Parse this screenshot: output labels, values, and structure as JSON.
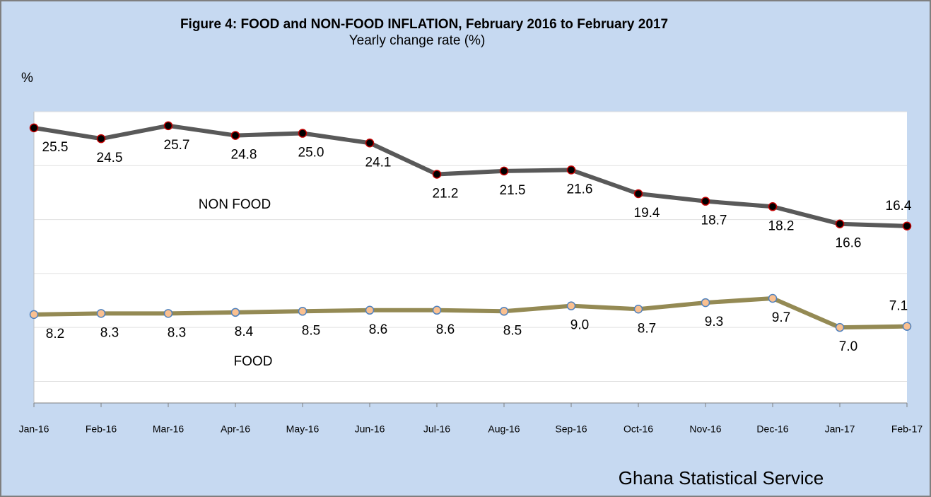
{
  "chart_data": {
    "type": "line",
    "title": "Figure 4: FOOD and NON-FOOD INFLATION,  February  2016  to  February 2017",
    "subtitle": "Yearly change rate (%)",
    "y_axis_label": "%",
    "source": "Ghana Statistical Service",
    "categories": [
      "Jan-16",
      "Feb-16",
      "Mar-16",
      "Apr-16",
      "May-16",
      "Jun-16",
      "Jul-16",
      "Aug-16",
      "Sep-16",
      "Oct-16",
      "Nov-16",
      "Dec-16",
      "Jan-17",
      "Feb-17"
    ],
    "series": [
      {
        "name": "NON FOOD",
        "color": "#595959",
        "marker_fill": "#000000",
        "marker_edge": "#c00000",
        "values": [
          25.5,
          24.5,
          25.7,
          24.8,
          25.0,
          24.1,
          21.2,
          21.5,
          21.6,
          19.4,
          18.7,
          18.2,
          16.6,
          16.4
        ],
        "value_labels": [
          "25.5",
          "24.5",
          "25.7",
          "24.8",
          "25.0",
          "24.1",
          "21.2",
          "21.5",
          "21.6",
          "19.4",
          "18.7",
          "18.2",
          "16.6",
          "16.4"
        ]
      },
      {
        "name": "FOOD",
        "color": "#948a54",
        "marker_fill": "#fac090",
        "marker_edge": "#4f81bd",
        "values": [
          8.2,
          8.3,
          8.3,
          8.4,
          8.5,
          8.6,
          8.6,
          8.5,
          9.0,
          8.7,
          9.3,
          9.7,
          7.0,
          7.1
        ],
        "value_labels": [
          "8.2",
          "8.3",
          "8.3",
          "8.4",
          "8.5",
          "8.6",
          "8.6",
          "8.5",
          "9.0",
          "8.7",
          "9.3",
          "9.7",
          "7.0",
          "7.1"
        ]
      }
    ],
    "ylim": [
      0,
      27
    ],
    "yticks": [
      2,
      7,
      12,
      17,
      22,
      27
    ],
    "ytick_labels": false,
    "grid": true,
    "legend": false
  }
}
